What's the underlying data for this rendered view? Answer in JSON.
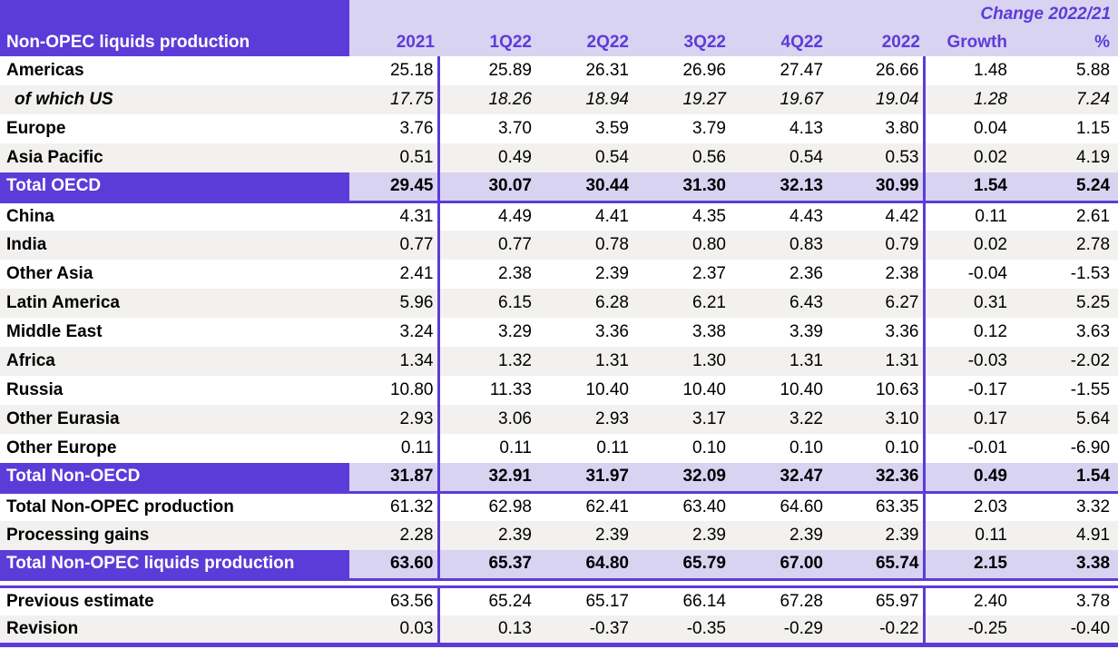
{
  "table": {
    "title": "Non-OPEC liquids production",
    "change_header": "Change 2022/21",
    "columns": [
      "2021",
      "1Q22",
      "2Q22",
      "3Q22",
      "4Q22",
      "2022",
      "Growth",
      "%"
    ],
    "rows": [
      {
        "label": "Americas",
        "style": "normal",
        "values": [
          "25.18",
          "25.89",
          "26.31",
          "26.96",
          "27.47",
          "26.66",
          "1.48",
          "5.88"
        ]
      },
      {
        "label": "of which US",
        "style": "italic",
        "values": [
          "17.75",
          "18.26",
          "18.94",
          "19.27",
          "19.67",
          "19.04",
          "1.28",
          "7.24"
        ]
      },
      {
        "label": "Europe",
        "style": "normal",
        "values": [
          "3.76",
          "3.70",
          "3.59",
          "3.79",
          "4.13",
          "3.80",
          "0.04",
          "1.15"
        ]
      },
      {
        "label": "Asia Pacific",
        "style": "normal",
        "values": [
          "0.51",
          "0.49",
          "0.54",
          "0.56",
          "0.54",
          "0.53",
          "0.02",
          "4.19"
        ]
      },
      {
        "label": "Total OECD",
        "style": "total",
        "values": [
          "29.45",
          "30.07",
          "30.44",
          "31.30",
          "32.13",
          "30.99",
          "1.54",
          "5.24"
        ]
      },
      {
        "label": "China",
        "style": "normal",
        "values": [
          "4.31",
          "4.49",
          "4.41",
          "4.35",
          "4.43",
          "4.42",
          "0.11",
          "2.61"
        ]
      },
      {
        "label": "India",
        "style": "normal",
        "values": [
          "0.77",
          "0.77",
          "0.78",
          "0.80",
          "0.83",
          "0.79",
          "0.02",
          "2.78"
        ]
      },
      {
        "label": "Other Asia",
        "style": "normal",
        "values": [
          "2.41",
          "2.38",
          "2.39",
          "2.37",
          "2.36",
          "2.38",
          "-0.04",
          "-1.53"
        ]
      },
      {
        "label": "Latin America",
        "style": "normal",
        "values": [
          "5.96",
          "6.15",
          "6.28",
          "6.21",
          "6.43",
          "6.27",
          "0.31",
          "5.25"
        ]
      },
      {
        "label": "Middle East",
        "style": "normal",
        "values": [
          "3.24",
          "3.29",
          "3.36",
          "3.38",
          "3.39",
          "3.36",
          "0.12",
          "3.63"
        ]
      },
      {
        "label": "Africa",
        "style": "normal",
        "values": [
          "1.34",
          "1.32",
          "1.31",
          "1.30",
          "1.31",
          "1.31",
          "-0.03",
          "-2.02"
        ]
      },
      {
        "label": "Russia",
        "style": "normal",
        "values": [
          "10.80",
          "11.33",
          "10.40",
          "10.40",
          "10.40",
          "10.63",
          "-0.17",
          "-1.55"
        ]
      },
      {
        "label": "Other Eurasia",
        "style": "normal",
        "values": [
          "2.93",
          "3.06",
          "2.93",
          "3.17",
          "3.22",
          "3.10",
          "0.17",
          "5.64"
        ]
      },
      {
        "label": "Other Europe",
        "style": "normal",
        "values": [
          "0.11",
          "0.11",
          "0.11",
          "0.10",
          "0.10",
          "0.10",
          "-0.01",
          "-6.90"
        ]
      },
      {
        "label": "Total Non-OECD",
        "style": "total",
        "values": [
          "31.87",
          "32.91",
          "31.97",
          "32.09",
          "32.47",
          "32.36",
          "0.49",
          "1.54"
        ]
      },
      {
        "label": "Total Non-OPEC production",
        "style": "normal",
        "values": [
          "61.32",
          "62.98",
          "62.41",
          "63.40",
          "64.60",
          "63.35",
          "2.03",
          "3.32"
        ]
      },
      {
        "label": "Processing gains",
        "style": "normal",
        "values": [
          "2.28",
          "2.39",
          "2.39",
          "2.39",
          "2.39",
          "2.39",
          "0.11",
          "4.91"
        ]
      },
      {
        "label": "Total Non-OPEC liquids production",
        "style": "total",
        "separator_after": "double",
        "values": [
          "63.60",
          "65.37",
          "64.80",
          "65.79",
          "67.00",
          "65.74",
          "2.15",
          "3.38"
        ]
      },
      {
        "label": "Previous estimate",
        "style": "normal",
        "values": [
          "63.56",
          "65.24",
          "65.17",
          "66.14",
          "67.28",
          "65.97",
          "2.40",
          "3.78"
        ]
      },
      {
        "label": "Revision",
        "style": "normal",
        "values": [
          "0.03",
          "0.13",
          "-0.37",
          "-0.35",
          "-0.29",
          "-0.22",
          "-0.25",
          "-0.40"
        ]
      }
    ],
    "colors": {
      "accent": "#5c3cd8",
      "header_light": "#d9d3f2",
      "row_alt": "#f2f1ef"
    }
  },
  "chart_data": {
    "type": "table",
    "title": "Non-OPEC liquids production",
    "columns": [
      "2021",
      "1Q22",
      "2Q22",
      "3Q22",
      "4Q22",
      "2022",
      "Change 2022/21 Growth",
      "Change 2022/21 %"
    ],
    "rows": [
      {
        "label": "Americas",
        "values": [
          25.18,
          25.89,
          26.31,
          26.96,
          27.47,
          26.66,
          1.48,
          5.88
        ]
      },
      {
        "label": "of which US",
        "values": [
          17.75,
          18.26,
          18.94,
          19.27,
          19.67,
          19.04,
          1.28,
          7.24
        ]
      },
      {
        "label": "Europe",
        "values": [
          3.76,
          3.7,
          3.59,
          3.79,
          4.13,
          3.8,
          0.04,
          1.15
        ]
      },
      {
        "label": "Asia Pacific",
        "values": [
          0.51,
          0.49,
          0.54,
          0.56,
          0.54,
          0.53,
          0.02,
          4.19
        ]
      },
      {
        "label": "Total OECD",
        "values": [
          29.45,
          30.07,
          30.44,
          31.3,
          32.13,
          30.99,
          1.54,
          5.24
        ]
      },
      {
        "label": "China",
        "values": [
          4.31,
          4.49,
          4.41,
          4.35,
          4.43,
          4.42,
          0.11,
          2.61
        ]
      },
      {
        "label": "India",
        "values": [
          0.77,
          0.77,
          0.78,
          0.8,
          0.83,
          0.79,
          0.02,
          2.78
        ]
      },
      {
        "label": "Other Asia",
        "values": [
          2.41,
          2.38,
          2.39,
          2.37,
          2.36,
          2.38,
          -0.04,
          -1.53
        ]
      },
      {
        "label": "Latin America",
        "values": [
          5.96,
          6.15,
          6.28,
          6.21,
          6.43,
          6.27,
          0.31,
          5.25
        ]
      },
      {
        "label": "Middle East",
        "values": [
          3.24,
          3.29,
          3.36,
          3.38,
          3.39,
          3.36,
          0.12,
          3.63
        ]
      },
      {
        "label": "Africa",
        "values": [
          1.34,
          1.32,
          1.31,
          1.3,
          1.31,
          1.31,
          -0.03,
          -2.02
        ]
      },
      {
        "label": "Russia",
        "values": [
          10.8,
          11.33,
          10.4,
          10.4,
          10.4,
          10.63,
          -0.17,
          -1.55
        ]
      },
      {
        "label": "Other Eurasia",
        "values": [
          2.93,
          3.06,
          2.93,
          3.17,
          3.22,
          3.1,
          0.17,
          5.64
        ]
      },
      {
        "label": "Other Europe",
        "values": [
          0.11,
          0.11,
          0.11,
          0.1,
          0.1,
          0.1,
          -0.01,
          -6.9
        ]
      },
      {
        "label": "Total Non-OECD",
        "values": [
          31.87,
          32.91,
          31.97,
          32.09,
          32.47,
          32.36,
          0.49,
          1.54
        ]
      },
      {
        "label": "Total Non-OPEC production",
        "values": [
          61.32,
          62.98,
          62.41,
          63.4,
          64.6,
          63.35,
          2.03,
          3.32
        ]
      },
      {
        "label": "Processing gains",
        "values": [
          2.28,
          2.39,
          2.39,
          2.39,
          2.39,
          2.39,
          0.11,
          4.91
        ]
      },
      {
        "label": "Total Non-OPEC liquids production",
        "values": [
          63.6,
          65.37,
          64.8,
          65.79,
          67.0,
          65.74,
          2.15,
          3.38
        ]
      },
      {
        "label": "Previous estimate",
        "values": [
          63.56,
          65.24,
          65.17,
          66.14,
          67.28,
          65.97,
          2.4,
          3.78
        ]
      },
      {
        "label": "Revision",
        "values": [
          0.03,
          0.13,
          -0.37,
          -0.35,
          -0.29,
          -0.22,
          -0.25,
          -0.4
        ]
      }
    ]
  }
}
